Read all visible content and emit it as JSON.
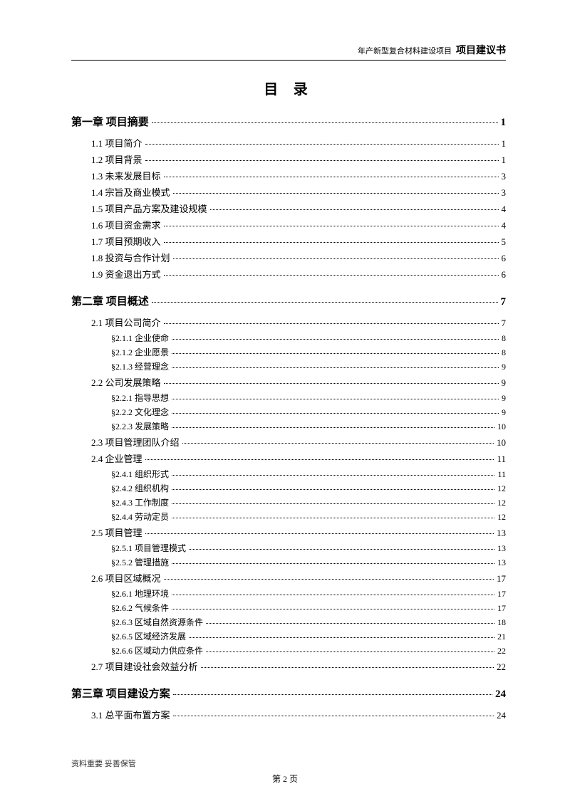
{
  "header": {
    "small": "年产新型复合材料建设项目",
    "bold": "项目建议书"
  },
  "tocTitle": "目 录",
  "entries": [
    {
      "level": "chapter",
      "label": "第一章 项目摘要",
      "page": "1"
    },
    {
      "level": "section",
      "label": "1.1 项目简介",
      "page": "1"
    },
    {
      "level": "section",
      "label": "1.2 项目背景",
      "page": "1"
    },
    {
      "level": "section",
      "label": "1.3 未来发展目标",
      "page": "3"
    },
    {
      "level": "section",
      "label": "1.4 宗旨及商业模式",
      "page": "3"
    },
    {
      "level": "section",
      "label": "1.5 项目产品方案及建设规模",
      "page": "4"
    },
    {
      "level": "section",
      "label": "1.6 项目资金需求",
      "page": "4"
    },
    {
      "level": "section",
      "label": "1.7 项目预期收入",
      "page": "5"
    },
    {
      "level": "section",
      "label": "1.8 投资与合作计划",
      "page": "6"
    },
    {
      "level": "section",
      "label": "1.9 资金退出方式",
      "page": "6"
    },
    {
      "level": "chapter",
      "label": "第二章 项目概述",
      "page": "7"
    },
    {
      "level": "section",
      "label": "2.1 项目公司简介",
      "page": "7"
    },
    {
      "level": "subsection",
      "label": "§2.1.1 企业使命",
      "page": "8"
    },
    {
      "level": "subsection",
      "label": "§2.1.2 企业愿景",
      "page": "8"
    },
    {
      "level": "subsection",
      "label": "§2.1.3 经营理念",
      "page": "9"
    },
    {
      "level": "section",
      "label": "2.2 公司发展策略",
      "page": "9"
    },
    {
      "level": "subsection",
      "label": "§2.2.1 指导思想",
      "page": "9"
    },
    {
      "level": "subsection",
      "label": "§2.2.2 文化理念",
      "page": "9"
    },
    {
      "level": "subsection",
      "label": "§2.2.3 发展策略",
      "page": "10"
    },
    {
      "level": "section",
      "label": "2.3 项目管理团队介绍",
      "page": "10"
    },
    {
      "level": "section",
      "label": "2.4 企业管理",
      "page": "11"
    },
    {
      "level": "subsection",
      "label": "§2.4.1 组织形式",
      "page": "11"
    },
    {
      "level": "subsection",
      "label": "§2.4.2 组织机构",
      "page": "12"
    },
    {
      "level": "subsection",
      "label": "§2.4.3 工作制度",
      "page": "12"
    },
    {
      "level": "subsection",
      "label": "§2.4.4 劳动定员",
      "page": "12"
    },
    {
      "level": "section",
      "label": "2.5 项目管理",
      "page": "13"
    },
    {
      "level": "subsection",
      "label": "§2.5.1 项目管理模式",
      "page": "13"
    },
    {
      "level": "subsection",
      "label": "§2.5.2 管理措施",
      "page": "13"
    },
    {
      "level": "section",
      "label": "2.6 项目区域概况",
      "page": "17"
    },
    {
      "level": "subsection",
      "label": "§2.6.1 地理环境",
      "page": "17"
    },
    {
      "level": "subsection",
      "label": "§2.6.2 气候条件",
      "page": "17"
    },
    {
      "level": "subsection",
      "label": "§2.6.3 区域自然资源条件",
      "page": "18"
    },
    {
      "level": "subsection",
      "label": "§2.6.5 区域经济发展",
      "page": "21"
    },
    {
      "level": "subsection",
      "label": "§2.6.6 区域动力供应条件",
      "page": "22"
    },
    {
      "level": "section",
      "label": "2.7 项目建设社会效益分析",
      "page": "22"
    },
    {
      "level": "chapter",
      "label": "第三章 项目建设方案",
      "page": "24"
    },
    {
      "level": "section",
      "label": "3.1 总平面布置方案",
      "page": "24"
    }
  ],
  "footerNote": "资料重要  妥善保管",
  "pageNumber": "第 2 页"
}
